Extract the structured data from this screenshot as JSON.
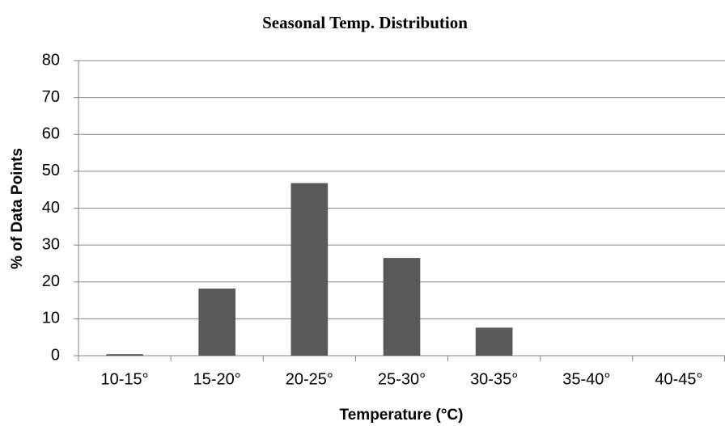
{
  "chart_data": {
    "type": "bar",
    "title": "Seasonal Temp. Distribution",
    "x_label": "Temperature (°C)",
    "y_label": "% of Data Points",
    "categories": [
      "10-15°",
      "15-20°",
      "20-25°",
      "25-30°",
      "30-35°",
      "35-40°",
      "40-45°"
    ],
    "values": [
      0.4,
      18.2,
      46.8,
      26.5,
      7.6,
      0,
      0
    ],
    "color": "#595959",
    "ylim": [
      0,
      80
    ],
    "yticks": [
      0,
      10,
      20,
      30,
      40,
      50,
      60,
      70,
      80
    ],
    "grid": true
  }
}
